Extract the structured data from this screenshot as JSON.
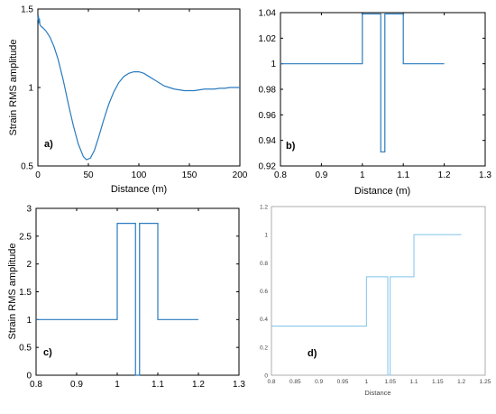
{
  "chart_data": [
    {
      "type": "line",
      "panel_label": "a)",
      "xlabel": "Distance (m)",
      "ylabel": "Strain RMS amplitude",
      "xlim": [
        0,
        200
      ],
      "ylim": [
        0.5,
        1.5
      ],
      "xticks": [
        0,
        50,
        100,
        150,
        200
      ],
      "yticks": [
        0.5,
        1,
        1.5
      ],
      "xtick_labels": [
        "0",
        "50",
        "100",
        "150",
        "200"
      ],
      "ytick_labels": [
        "0.5",
        "1",
        "1.5"
      ],
      "color": "#2a7bbf",
      "x": [
        0,
        0.5,
        1,
        1.5,
        2,
        3,
        5,
        8,
        12,
        16,
        20,
        25,
        30,
        35,
        40,
        45,
        48,
        52,
        56,
        60,
        65,
        70,
        75,
        80,
        85,
        90,
        95,
        100,
        105,
        110,
        115,
        120,
        125,
        130,
        135,
        140,
        145,
        150,
        155,
        160,
        165,
        170,
        175,
        180,
        185,
        190,
        195,
        200
      ],
      "y": [
        1.43,
        1.46,
        1.41,
        1.44,
        1.4,
        1.39,
        1.38,
        1.36,
        1.32,
        1.26,
        1.18,
        1.05,
        0.9,
        0.76,
        0.64,
        0.56,
        0.54,
        0.55,
        0.6,
        0.68,
        0.79,
        0.89,
        0.97,
        1.03,
        1.07,
        1.09,
        1.1,
        1.1,
        1.09,
        1.07,
        1.05,
        1.03,
        1.01,
        1.0,
        0.99,
        0.985,
        0.98,
        0.98,
        0.98,
        0.985,
        0.99,
        0.99,
        0.99,
        0.995,
        0.995,
        1.0,
        1.0,
        1.0
      ]
    },
    {
      "type": "line",
      "panel_label": "b)",
      "xlabel": "Distance (m)",
      "ylabel": "",
      "xlim": [
        0.8,
        1.3
      ],
      "ylim": [
        0.92,
        1.04
      ],
      "xticks": [
        0.8,
        0.9,
        1.0,
        1.1,
        1.2,
        1.3
      ],
      "yticks": [
        0.92,
        0.94,
        0.96,
        0.98,
        1.0,
        1.02,
        1.04
      ],
      "xtick_labels": [
        "0.8",
        "0.9",
        "1",
        "1.1",
        "1.2",
        "1.3"
      ],
      "ytick_labels": [
        "0.92",
        "0.94",
        "0.96",
        "0.98",
        "1",
        "1.02",
        "1.04"
      ],
      "color": "#2a7bbf",
      "x": [
        0.8,
        1.0,
        1.0,
        1.045,
        1.045,
        1.05,
        1.05,
        1.055,
        1.055,
        1.1,
        1.1,
        1.2
      ],
      "y": [
        1.0,
        1.0,
        1.039,
        1.039,
        0.931,
        0.931,
        0.931,
        0.931,
        1.039,
        1.039,
        1.0,
        1.0
      ]
    },
    {
      "type": "line",
      "panel_label": "c)",
      "xlabel": "",
      "ylabel": "Strain RMS amplitude",
      "xlim": [
        0.8,
        1.3
      ],
      "ylim": [
        0,
        3
      ],
      "xticks": [
        0.8,
        0.9,
        1.0,
        1.1,
        1.2,
        1.3
      ],
      "yticks": [
        0,
        0.5,
        1,
        1.5,
        2,
        2.5,
        3
      ],
      "xtick_labels": [
        "0.8",
        "0.9",
        "1",
        "1.1",
        "1.2",
        "1.3"
      ],
      "ytick_labels": [
        "0",
        "0.5",
        "1",
        "1.5",
        "2",
        "2.5",
        "3"
      ],
      "color": "#2a7bbf",
      "x": [
        0.8,
        1.0,
        1.0,
        1.045,
        1.045,
        1.05,
        1.05,
        1.055,
        1.055,
        1.1,
        1.1,
        1.2
      ],
      "y": [
        1.0,
        1.0,
        2.73,
        2.73,
        0.0,
        0.0,
        0.0,
        0.0,
        2.73,
        2.73,
        1.0,
        1.0
      ]
    },
    {
      "type": "line",
      "panel_label": "d)",
      "xlabel": "Distance",
      "ylabel": "",
      "xlim": [
        0.8,
        1.25
      ],
      "ylim": [
        0,
        1.2
      ],
      "xticks": [
        0.8,
        0.85,
        0.9,
        0.95,
        1.0,
        1.05,
        1.1,
        1.15,
        1.2,
        1.25
      ],
      "yticks": [
        0,
        0.2,
        0.4,
        0.6,
        0.8,
        1.0,
        1.2
      ],
      "xtick_labels": [
        "0.8",
        "0.85",
        "0.9",
        "0.95",
        "1",
        "1.05",
        "1.1",
        "1.15",
        "1.2",
        "1.25"
      ],
      "ytick_labels": [
        "0",
        "0.2",
        "0.4",
        "0.6",
        "0.8",
        "1",
        "1.2"
      ],
      "color": "#7fc4e8",
      "x": [
        0.8,
        1.0,
        1.0,
        1.045,
        1.045,
        1.05,
        1.05,
        1.1,
        1.1,
        1.2
      ],
      "y": [
        0.35,
        0.35,
        0.7,
        0.7,
        0.0,
        0.0,
        0.7,
        0.7,
        1.0,
        1.0
      ]
    }
  ]
}
